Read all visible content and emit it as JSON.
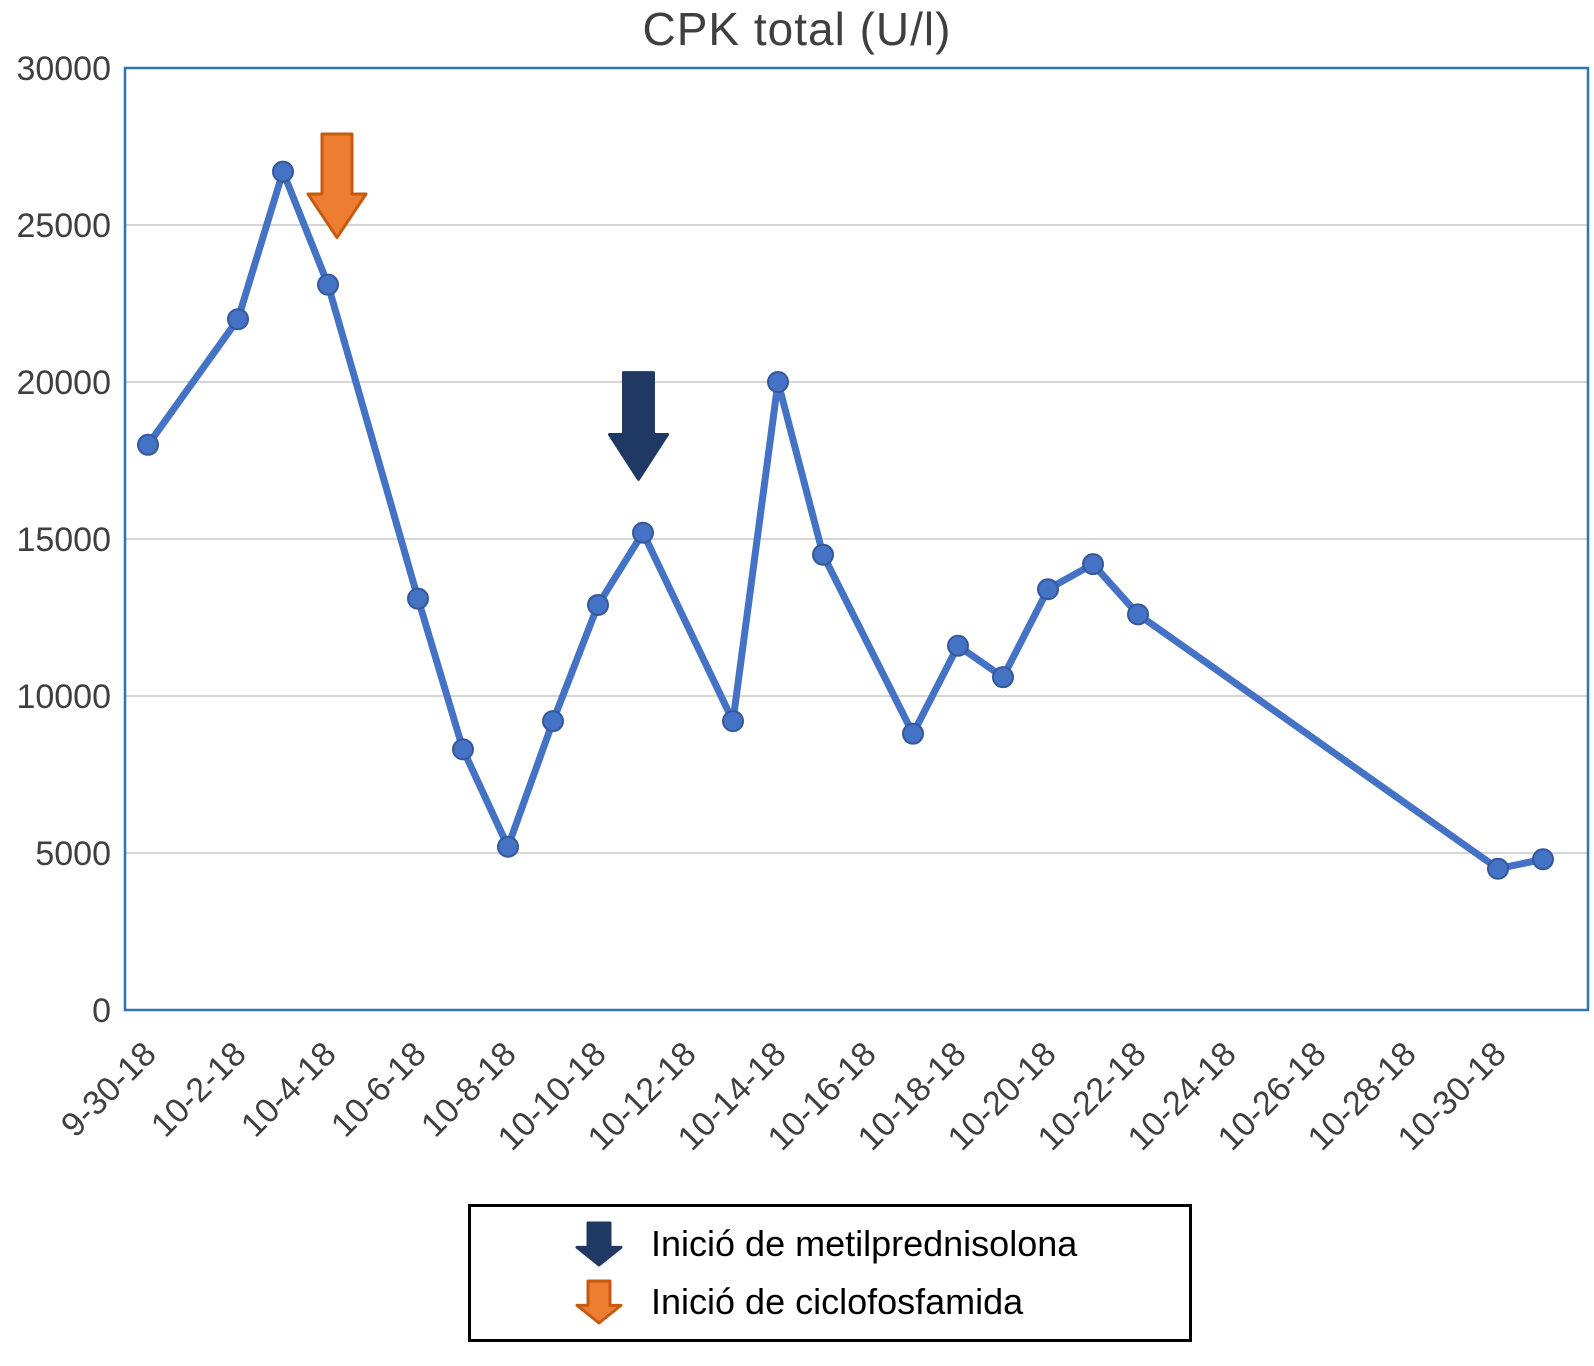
{
  "title": "CPK total (U/l)",
  "chart_data": {
    "type": "line",
    "title": "CPK total (U/l)",
    "series_name": "CPK total",
    "line_color": "#4472C4",
    "marker_edge_color": "#35589c",
    "grid": "horizontal",
    "grid_color": "#d6d6d6",
    "border_color": "#2E75B6",
    "ylim": [
      0,
      30000
    ],
    "y_ticks": [
      0,
      5000,
      10000,
      15000,
      20000,
      25000,
      30000
    ],
    "x_range_days": [
      0,
      31
    ],
    "x_days": [
      0,
      2,
      3,
      4,
      6,
      7,
      8,
      9,
      10,
      11,
      13,
      14,
      15,
      17,
      18,
      19,
      20,
      21,
      22,
      30,
      31
    ],
    "values": [
      18000,
      22000,
      26700,
      23100,
      13100,
      8300,
      5200,
      9200,
      12900,
      15200,
      9200,
      20000,
      14500,
      8800,
      11600,
      10600,
      13400,
      14200,
      12600,
      4500,
      4800
    ],
    "x_ticks": [
      {
        "day": 0,
        "label": "9-30-18"
      },
      {
        "day": 2,
        "label": "10-2-18"
      },
      {
        "day": 4,
        "label": "10-4-18"
      },
      {
        "day": 6,
        "label": "10-6-18"
      },
      {
        "day": 8,
        "label": "10-8-18"
      },
      {
        "day": 10,
        "label": "10-10-18"
      },
      {
        "day": 12,
        "label": "10-12-18"
      },
      {
        "day": 14,
        "label": "10-14-18"
      },
      {
        "day": 16,
        "label": "10-16-18"
      },
      {
        "day": 18,
        "label": "10-18-18"
      },
      {
        "day": 20,
        "label": "10-20-18"
      },
      {
        "day": 22,
        "label": "10-22-18"
      },
      {
        "day": 24,
        "label": "10-24-18"
      },
      {
        "day": 26,
        "label": "10-26-18"
      },
      {
        "day": 28,
        "label": "10-28-18"
      },
      {
        "day": 30,
        "label": "10-30-18"
      }
    ],
    "annotations": [
      {
        "name": "inicio-ciclofosfamida-arrow",
        "day": 4.2,
        "top_value": 27900,
        "tip_value": 24600,
        "fill": "#ED7D31",
        "outline": "#C55A11"
      },
      {
        "name": "inicio-metilprednisolona-arrow",
        "day": 10.9,
        "top_value": 20300,
        "tip_value": 16900,
        "fill": "#1F3864",
        "outline": "#1F3864"
      }
    ],
    "legend_position": "bottom",
    "legend": [
      {
        "label": "Inició de metilprednisolona",
        "fill": "#1F3864",
        "outline": "#1F3864"
      },
      {
        "label": "Inició de ciclofosfamida",
        "fill": "#ED7D31",
        "outline": "#C55A11"
      }
    ]
  }
}
